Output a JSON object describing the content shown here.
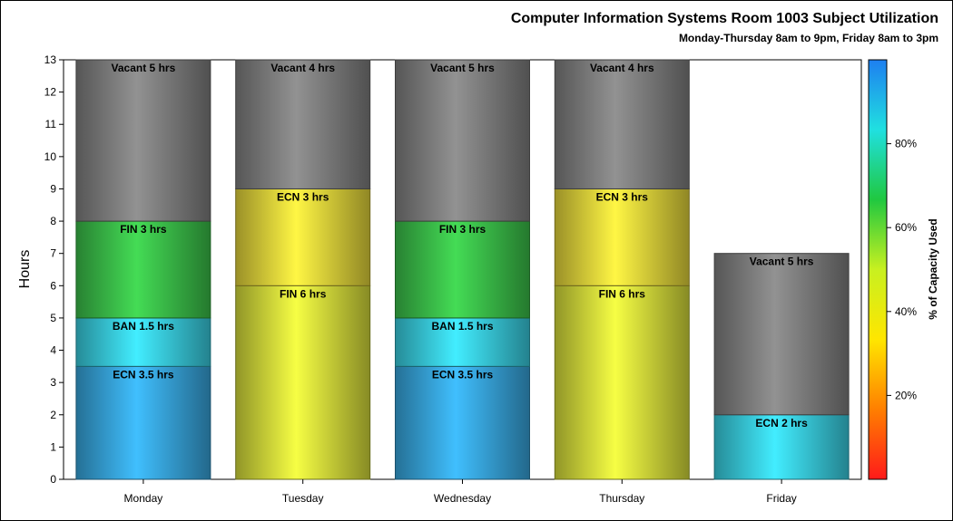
{
  "chart_data": {
    "type": "bar",
    "stacked": true,
    "title": "Computer Information Systems Room 1003 Subject Utilization",
    "subtitle": "Monday-Thursday 8am to 9pm, Friday 8am to 3pm",
    "ylabel": "Hours",
    "xlabel": "",
    "ylim": [
      0,
      13
    ],
    "yticks": [
      0,
      1,
      2,
      3,
      4,
      5,
      6,
      7,
      8,
      9,
      10,
      11,
      12,
      13
    ],
    "categories": [
      "Monday",
      "Tuesday",
      "Wednesday",
      "Thursday",
      "Friday"
    ],
    "bars": [
      {
        "category": "Monday",
        "segments": [
          {
            "label": "ECN 3.5 hrs",
            "value": 3.5,
            "color": "#3cb4f0"
          },
          {
            "label": "BAN 1.5 hrs",
            "value": 1.5,
            "color": "#3ee0f4"
          },
          {
            "label": "FIN 3 hrs",
            "value": 3,
            "color": "#40d050"
          },
          {
            "label": "Vacant 5 hrs",
            "value": 5,
            "color": "#8a8a8a"
          }
        ]
      },
      {
        "category": "Tuesday",
        "segments": [
          {
            "label": "FIN 6 hrs",
            "value": 6,
            "color": "#e8f040"
          },
          {
            "label": "ECN 3 hrs",
            "value": 3,
            "color": "#f8e840"
          },
          {
            "label": "Vacant 4 hrs",
            "value": 4,
            "color": "#8a8a8a"
          }
        ]
      },
      {
        "category": "Wednesday",
        "segments": [
          {
            "label": "ECN 3.5 hrs",
            "value": 3.5,
            "color": "#3cb4f0"
          },
          {
            "label": "BAN 1.5 hrs",
            "value": 1.5,
            "color": "#3ee0f4"
          },
          {
            "label": "FIN 3 hrs",
            "value": 3,
            "color": "#40d050"
          },
          {
            "label": "Vacant 5 hrs",
            "value": 5,
            "color": "#8a8a8a"
          }
        ]
      },
      {
        "category": "Thursday",
        "segments": [
          {
            "label": "FIN 6 hrs",
            "value": 6,
            "color": "#e8f040"
          },
          {
            "label": "ECN 3 hrs",
            "value": 3,
            "color": "#f8e840"
          },
          {
            "label": "Vacant 4 hrs",
            "value": 4,
            "color": "#8a8a8a"
          }
        ]
      },
      {
        "category": "Friday",
        "segments": [
          {
            "label": "ECN 2 hrs",
            "value": 2,
            "color": "#3ee0f4"
          },
          {
            "label": "Vacant 5 hrs",
            "value": 5,
            "color": "#8a8a8a"
          }
        ]
      }
    ],
    "colorbar": {
      "label": "% of Capacity Used",
      "ticks": [
        "20%",
        "40%",
        "60%",
        "80%"
      ],
      "tick_values": [
        20,
        40,
        60,
        80
      ],
      "range": [
        0,
        100
      ],
      "colors": [
        "#ff1a1a",
        "#ff7f00",
        "#ffe600",
        "#c8f020",
        "#20c840",
        "#20e0e0",
        "#1e7ff0"
      ]
    },
    "grid": false
  }
}
